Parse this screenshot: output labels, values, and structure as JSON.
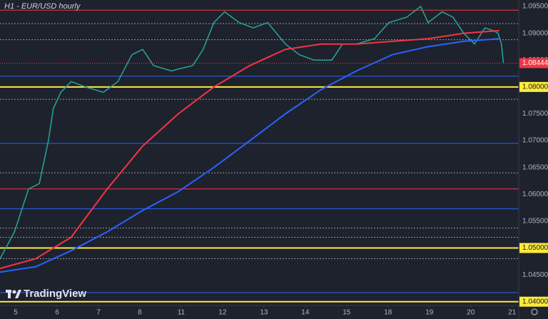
{
  "chart_data": {
    "type": "line",
    "title": "H1 - EUR/USD hourly",
    "brand": "TradingView",
    "xlim": [
      -0.38,
      12.16
    ],
    "xticks": [
      {
        "value": 0,
        "label": "5"
      },
      {
        "value": 1,
        "label": "6"
      },
      {
        "value": 2,
        "label": "7"
      },
      {
        "value": 3,
        "label": "8"
      },
      {
        "value": 4,
        "label": "11"
      },
      {
        "value": 5,
        "label": "12"
      },
      {
        "value": 6,
        "label": "13"
      },
      {
        "value": 7,
        "label": "14"
      },
      {
        "value": 8,
        "label": "15"
      },
      {
        "value": 9,
        "label": "18"
      },
      {
        "value": 10,
        "label": "19"
      },
      {
        "value": 11,
        "label": "20"
      },
      {
        "value": 12,
        "label": "21"
      }
    ],
    "ylim": [
      1.0393,
      1.0962
    ],
    "yticks": [
      {
        "value": 1.04,
        "label": "1.04000"
      },
      {
        "value": 1.045,
        "label": "1.04500"
      },
      {
        "value": 1.05,
        "label": "1.05000"
      },
      {
        "value": 1.055,
        "label": "1.05500"
      },
      {
        "value": 1.06,
        "label": "1.06000"
      },
      {
        "value": 1.065,
        "label": "1.06500"
      },
      {
        "value": 1.07,
        "label": "1.07000"
      },
      {
        "value": 1.075,
        "label": "1.07500"
      },
      {
        "value": 1.08,
        "label": "1.08000"
      },
      {
        "value": 1.085,
        "label": "1.08500"
      },
      {
        "value": 1.09,
        "label": "1.09000"
      },
      {
        "value": 1.095,
        "label": "1.09500"
      }
    ],
    "series": [
      {
        "color": "#26a69a",
        "x": [
          -0.38,
          -0.03,
          0.31,
          0.57,
          0.79,
          0.91,
          1.09,
          1.34,
          1.69,
          2.12,
          2.47,
          2.81,
          3.07,
          3.33,
          3.76,
          4.28,
          4.53,
          4.79,
          5.05,
          5.4,
          5.74,
          6.09,
          6.52,
          6.86,
          7.21,
          7.64,
          7.9,
          8.24,
          8.67,
          9.02,
          9.45,
          9.79,
          9.97,
          10.31,
          10.57,
          10.83,
          11.09,
          11.34,
          11.55,
          11.66,
          11.74,
          11.79
        ],
        "values": [
          1.048,
          1.053,
          1.061,
          1.062,
          1.07,
          1.076,
          1.079,
          1.081,
          1.08,
          1.079,
          1.081,
          1.086,
          1.087,
          1.084,
          1.083,
          1.084,
          1.087,
          1.092,
          1.094,
          1.092,
          1.091,
          1.092,
          1.088,
          1.086,
          1.085,
          1.085,
          1.088,
          1.088,
          1.089,
          1.092,
          1.093,
          1.095,
          1.092,
          1.094,
          1.093,
          1.09,
          1.088,
          1.091,
          1.0905,
          1.09,
          1.088,
          1.0845
        ]
      },
      {
        "color": "#f23645",
        "x": [
          -0.38,
          0.48,
          1.34,
          2.21,
          3.07,
          3.93,
          4.79,
          5.66,
          6.52,
          7.38,
          8.24,
          9.1,
          9.97,
          10.83,
          11.69
        ],
        "values": [
          1.0462,
          1.048,
          1.052,
          1.061,
          1.069,
          1.075,
          1.08,
          1.084,
          1.087,
          1.088,
          1.088,
          1.0885,
          1.089,
          1.09,
          1.0905
        ]
      },
      {
        "color": "#2962ff",
        "x": [
          -0.38,
          0.48,
          1.34,
          2.21,
          3.07,
          3.93,
          4.79,
          5.66,
          6.52,
          7.38,
          8.24,
          9.1,
          9.97,
          10.83,
          11.69
        ],
        "values": [
          1.0455,
          1.0465,
          1.0495,
          1.053,
          1.057,
          1.0605,
          1.065,
          1.07,
          1.075,
          1.0795,
          1.083,
          1.086,
          1.0875,
          1.0885,
          1.089
        ]
      }
    ],
    "levels": [
      {
        "value": 1.0943,
        "color": "#f23645",
        "style": "solid"
      },
      {
        "value": 1.0918,
        "color": "#9598a1",
        "style": "dotted"
      },
      {
        "value": 1.0888,
        "color": "#9598a1",
        "style": "dotted"
      },
      {
        "value": 1.082,
        "color": "#2962ff",
        "style": "solid"
      },
      {
        "value": 1.08,
        "color": "#ffeb3b",
        "style": "thick"
      },
      {
        "value": 1.0777,
        "color": "#9598a1",
        "style": "dotted"
      },
      {
        "value": 1.0695,
        "color": "#2962ff",
        "style": "solid"
      },
      {
        "value": 1.064,
        "color": "#9598a1",
        "style": "dotted"
      },
      {
        "value": 1.061,
        "color": "#f23645",
        "style": "solid"
      },
      {
        "value": 1.0573,
        "color": "#2962ff",
        "style": "solid"
      },
      {
        "value": 1.0537,
        "color": "#9598a1",
        "style": "dotted"
      },
      {
        "value": 1.052,
        "color": "#9598a1",
        "style": "dotted"
      },
      {
        "value": 1.05,
        "color": "#ffeb3b",
        "style": "thick"
      },
      {
        "value": 1.048,
        "color": "#9598a1",
        "style": "dotted"
      },
      {
        "value": 1.0417,
        "color": "#2962ff",
        "style": "solid"
      },
      {
        "value": 1.04,
        "color": "#ffeb3b",
        "style": "thick"
      }
    ],
    "last_price": {
      "value": 1.08444,
      "label": "1.08444",
      "color": "#f23645"
    }
  }
}
